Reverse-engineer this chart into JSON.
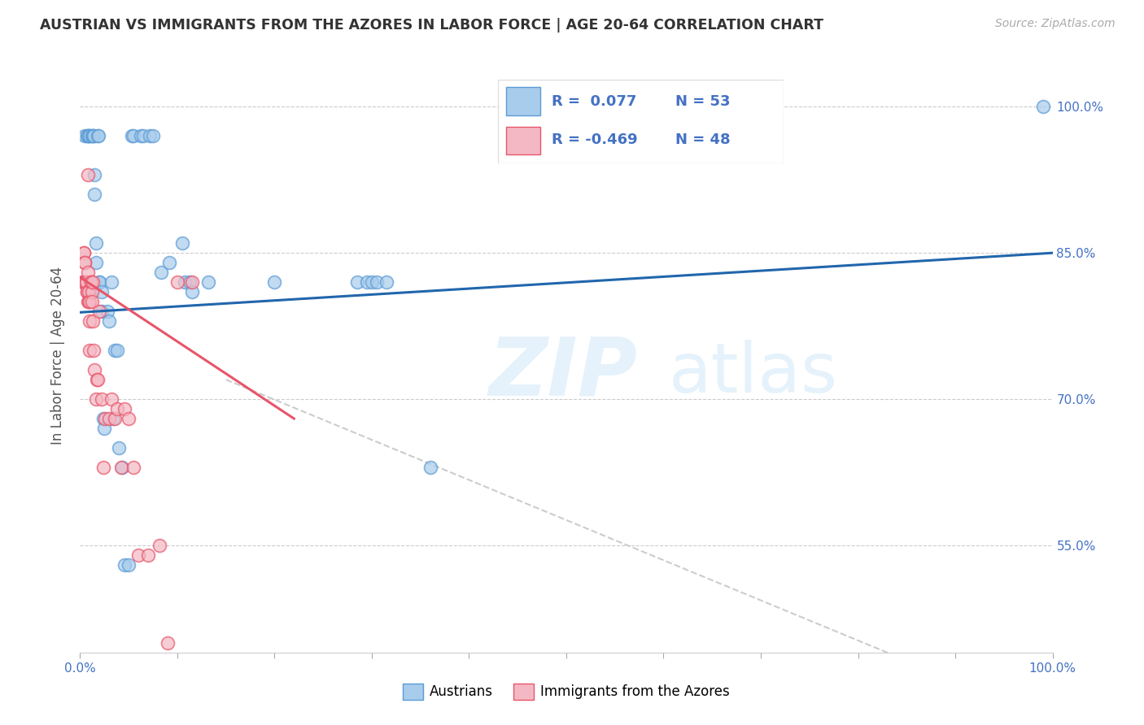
{
  "title": "AUSTRIAN VS IMMIGRANTS FROM THE AZORES IN LABOR FORCE | AGE 20-64 CORRELATION CHART",
  "source": "Source: ZipAtlas.com",
  "ylabel": "In Labor Force | Age 20-64",
  "y_ticks": [
    0.55,
    0.7,
    0.85,
    1.0
  ],
  "y_tick_labels": [
    "55.0%",
    "70.0%",
    "85.0%",
    "100.0%"
  ],
  "x_range": [
    0.0,
    1.0
  ],
  "y_range": [
    0.44,
    1.05
  ],
  "legend_blue_R": "0.077",
  "legend_blue_N": "53",
  "legend_pink_R": "-0.469",
  "legend_pink_N": "48",
  "legend_label_blue": "Austrians",
  "legend_label_pink": "Immigrants from the Azores",
  "blue_color": "#a8ccec",
  "pink_color": "#f4b8c4",
  "blue_edge_color": "#5b9bd5",
  "pink_edge_color": "#e8556a",
  "blue_trend_color": "#2166ac",
  "pink_trend_color": "#e8556a",
  "blue_trend": [
    0.0,
    0.789,
    1.0,
    0.85
  ],
  "pink_trend_solid": [
    0.0,
    0.825,
    0.22,
    0.68
  ],
  "pink_trend_dashed": [
    0.15,
    0.72,
    1.0,
    0.37
  ],
  "blue_x": [
    0.005,
    0.007,
    0.008,
    0.008,
    0.01,
    0.01,
    0.012,
    0.013,
    0.014,
    0.014,
    0.015,
    0.015,
    0.016,
    0.016,
    0.018,
    0.019,
    0.02,
    0.02,
    0.022,
    0.022,
    0.024,
    0.025,
    0.028,
    0.03,
    0.032,
    0.034,
    0.036,
    0.038,
    0.04,
    0.043,
    0.046,
    0.05,
    0.053,
    0.055,
    0.062,
    0.065,
    0.072,
    0.075,
    0.083,
    0.092,
    0.105,
    0.108,
    0.113,
    0.115,
    0.132,
    0.2,
    0.285,
    0.295,
    0.3,
    0.305,
    0.315,
    0.99,
    0.36
  ],
  "blue_y": [
    0.97,
    0.97,
    0.97,
    0.97,
    0.97,
    0.97,
    0.97,
    0.97,
    0.97,
    0.97,
    0.93,
    0.91,
    0.86,
    0.84,
    0.97,
    0.97,
    0.82,
    0.82,
    0.81,
    0.79,
    0.68,
    0.67,
    0.79,
    0.78,
    0.82,
    0.68,
    0.75,
    0.75,
    0.65,
    0.63,
    0.53,
    0.53,
    0.97,
    0.97,
    0.97,
    0.97,
    0.97,
    0.97,
    0.83,
    0.84,
    0.86,
    0.82,
    0.82,
    0.81,
    0.82,
    0.82,
    0.82,
    0.82,
    0.82,
    0.82,
    0.82,
    1.0,
    0.63
  ],
  "pink_x": [
    0.003,
    0.003,
    0.004,
    0.004,
    0.005,
    0.005,
    0.005,
    0.006,
    0.006,
    0.007,
    0.007,
    0.008,
    0.008,
    0.008,
    0.009,
    0.009,
    0.01,
    0.01,
    0.01,
    0.011,
    0.011,
    0.012,
    0.012,
    0.013,
    0.013,
    0.014,
    0.015,
    0.016,
    0.017,
    0.018,
    0.02,
    0.022,
    0.024,
    0.026,
    0.03,
    0.032,
    0.036,
    0.038,
    0.042,
    0.046,
    0.05,
    0.055,
    0.06,
    0.07,
    0.082,
    0.09,
    0.1,
    0.115
  ],
  "pink_y": [
    0.82,
    0.82,
    0.85,
    0.85,
    0.84,
    0.84,
    0.82,
    0.82,
    0.82,
    0.81,
    0.81,
    0.8,
    0.93,
    0.83,
    0.81,
    0.8,
    0.8,
    0.78,
    0.75,
    0.82,
    0.82,
    0.81,
    0.8,
    0.82,
    0.78,
    0.75,
    0.73,
    0.7,
    0.72,
    0.72,
    0.79,
    0.7,
    0.63,
    0.68,
    0.68,
    0.7,
    0.68,
    0.69,
    0.63,
    0.69,
    0.68,
    0.63,
    0.54,
    0.54,
    0.55,
    0.45,
    0.82,
    0.82
  ]
}
